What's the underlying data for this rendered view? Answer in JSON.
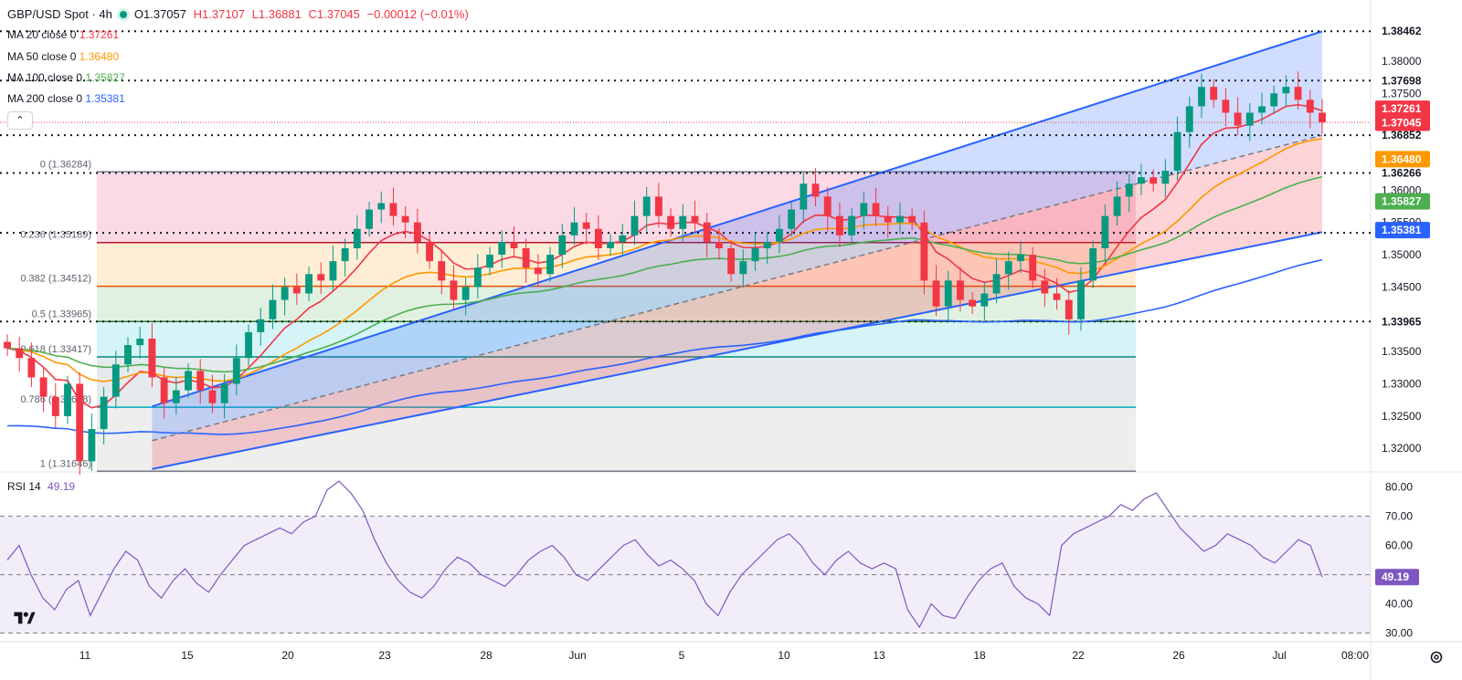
{
  "header": {
    "symbol": "GBP/USD Spot · 4h",
    "open": "O1.37057",
    "high": "H1.37107",
    "low": "L1.36881",
    "close": "C1.37045",
    "change": "−0.00012 (−0.01%)"
  },
  "ma_legend": [
    {
      "label": "MA 20 close 0",
      "value": "1.37261",
      "color": "#f23645"
    },
    {
      "label": "MA 50 close 0",
      "value": "1.36480",
      "color": "#ff9800"
    },
    {
      "label": "MA 100 close 0",
      "value": "1.35827",
      "color": "#4caf50"
    },
    {
      "label": "MA 200 close 0",
      "value": "1.35381",
      "color": "#2962ff"
    }
  ],
  "rsi_legend": {
    "label": "RSI 14",
    "value": "49.19"
  },
  "colors": {
    "up": "#089981",
    "down": "#f23645",
    "channel": "#2962ff",
    "rsi": "#7e57c2"
  },
  "chart_data": [
    {
      "type": "candlestick",
      "title": "GBP/USD Spot · 4h",
      "ylim": [
        1.3165,
        1.3855
      ],
      "y_ticks": [
        "1.38000",
        "1.37500",
        "1.36000",
        "1.35500",
        "1.35000",
        "1.34500",
        "1.33500",
        "1.33000",
        "1.32500",
        "1.32000"
      ],
      "x_ticks": [
        "11",
        "15",
        "20",
        "23",
        "28",
        "Jun",
        "5",
        "10",
        "13",
        "18",
        "22",
        "26",
        "Jul",
        "08:00"
      ],
      "horizontal_levels": [
        {
          "label": "1.38462",
          "value": 1.38462
        },
        {
          "label": "1.37698",
          "value": 1.37698
        },
        {
          "label": "1.36852",
          "value": 1.36852
        },
        {
          "label": "1.36266",
          "value": 1.36266
        },
        {
          "label": "1.35338",
          "value": 1.35338
        },
        {
          "label": "1.33965",
          "value": 1.33965
        }
      ],
      "price_tags": [
        {
          "label": "1.37261",
          "value": 1.37261,
          "color": "#f23645"
        },
        {
          "label": "1.37045",
          "value": 1.37045,
          "color": "#f23645"
        },
        {
          "label": "1.36480",
          "value": 1.3648,
          "color": "#ff9800"
        },
        {
          "label": "1.35827",
          "value": 1.35827,
          "color": "#4caf50"
        },
        {
          "label": "1.35381",
          "value": 1.35381,
          "color": "#2962ff"
        }
      ],
      "fibonacci": [
        {
          "label": "0 (1.36284)",
          "value": 1.36284,
          "color": "#787b86"
        },
        {
          "label": "0.236 (1.35189)",
          "value": 1.35189,
          "color": "#b2172b"
        },
        {
          "label": "0.382 (1.34512)",
          "value": 1.34512,
          "color": "#e65100"
        },
        {
          "label": "0.5 (1.33965)",
          "value": 1.33965,
          "color": "#2e7d32"
        },
        {
          "label": "0.618 (1.33417)",
          "value": 1.33417,
          "color": "#00897b"
        },
        {
          "label": "0.786 (1.32638)",
          "value": 1.32638,
          "color": "#00acc1"
        },
        {
          "label": "1 (1.31646)",
          "value": 1.31646,
          "color": "#787b86"
        }
      ],
      "series": [
        {
          "name": "GBP/USD",
          "close": [
            1.3355,
            1.334,
            1.331,
            1.328,
            1.325,
            1.33,
            1.318,
            1.323,
            1.328,
            1.333,
            1.336,
            1.337,
            1.331,
            1.327,
            1.329,
            1.332,
            1.329,
            1.327,
            1.33,
            1.334,
            1.338,
            1.34,
            1.343,
            1.345,
            1.344,
            1.347,
            1.346,
            1.349,
            1.351,
            1.354,
            1.357,
            1.358,
            1.356,
            1.355,
            1.352,
            1.349,
            1.346,
            1.343,
            1.345,
            1.348,
            1.35,
            1.352,
            1.351,
            1.348,
            1.347,
            1.35,
            1.353,
            1.355,
            1.354,
            1.351,
            1.352,
            1.353,
            1.356,
            1.359,
            1.356,
            1.354,
            1.356,
            1.355,
            1.352,
            1.351,
            1.347,
            1.349,
            1.351,
            1.352,
            1.354,
            1.357,
            1.361,
            1.359,
            1.356,
            1.353,
            1.356,
            1.358,
            1.356,
            1.355,
            1.356,
            1.355,
            1.346,
            1.342,
            1.346,
            1.343,
            1.342,
            1.344,
            1.347,
            1.349,
            1.35,
            1.346,
            1.344,
            1.343,
            1.34,
            1.346,
            1.351,
            1.356,
            1.359,
            1.361,
            1.362,
            1.361,
            1.363,
            1.369,
            1.373,
            1.376,
            1.374,
            1.372,
            1.37,
            1.372,
            1.373,
            1.375,
            1.376,
            1.374,
            1.372,
            1.3705
          ]
        }
      ]
    },
    {
      "type": "line",
      "title": "RSI 14",
      "ylim": [
        28,
        83
      ],
      "y_ticks": [
        "80.00",
        "70.00",
        "60.00",
        "40.00",
        "30.00"
      ],
      "series": [
        {
          "name": "RSI 14",
          "values": [
            55,
            60,
            50,
            42,
            38,
            45,
            48,
            36,
            44,
            52,
            58,
            55,
            46,
            42,
            48,
            52,
            47,
            44,
            50,
            55,
            60,
            62,
            64,
            66,
            64,
            68,
            70,
            79,
            82,
            78,
            72,
            62,
            54,
            48,
            44,
            42,
            46,
            52,
            56,
            54,
            50,
            48,
            46,
            50,
            55,
            58,
            60,
            56,
            50,
            48,
            52,
            56,
            60,
            62,
            57,
            53,
            55,
            52,
            48,
            40,
            36,
            44,
            50,
            54,
            58,
            62,
            64,
            60,
            54,
            50,
            55,
            58,
            54,
            52,
            54,
            52,
            38,
            32,
            40,
            36,
            35,
            42,
            48,
            52,
            54,
            46,
            42,
            40,
            36,
            60,
            64,
            66,
            68,
            70,
            74,
            72,
            76,
            78,
            72,
            66,
            62,
            58,
            60,
            64,
            62,
            60,
            56,
            54,
            58,
            62,
            60,
            49.19
          ]
        }
      ],
      "current_label": "49.19",
      "levels": [
        70,
        50,
        30
      ]
    }
  ]
}
